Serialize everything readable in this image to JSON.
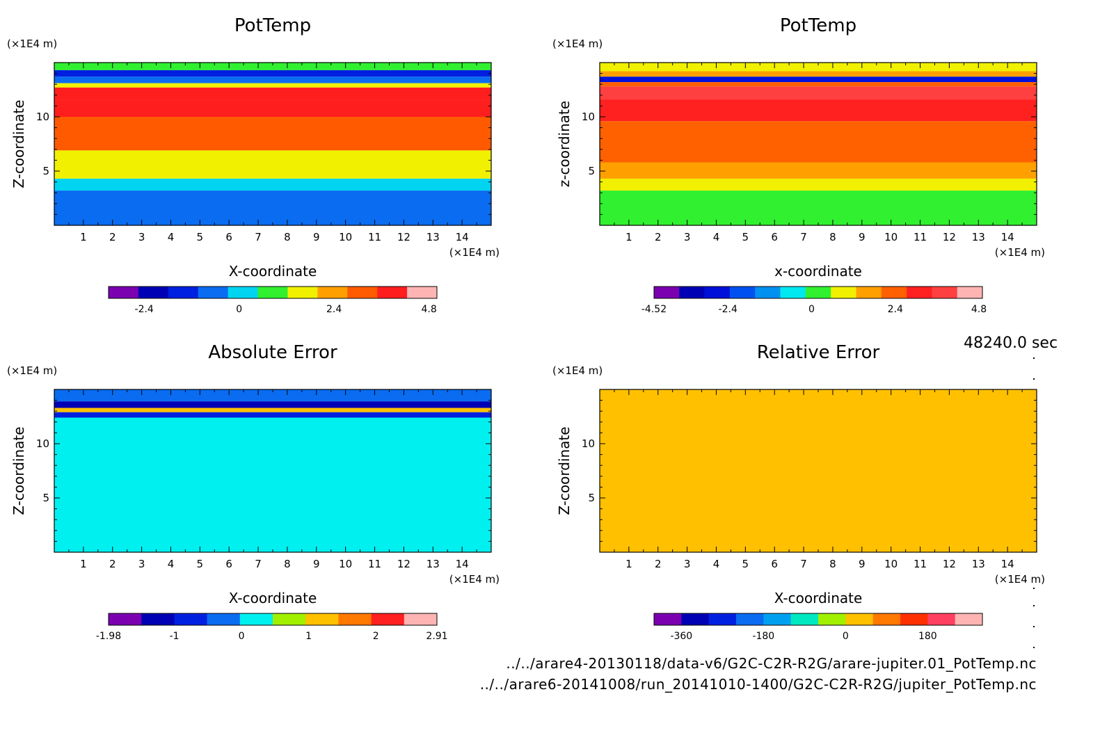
{
  "timestamp": "48240.0 sec",
  "files": [
    "../../arare4-20130118/data-v6/G2C-C2R-R2G/arare-jupiter.01_PotTemp.nc",
    "../../arare6-20141008/run_20141010-1400/G2C-C2R-R2G/jupiter_PotTemp.nc"
  ],
  "chart_data": [
    {
      "type": "heatmap",
      "title": "PotTemp",
      "xlabel": "X-coordinate",
      "ylabel": "Z-coordinate",
      "x_unit": "(×1E4 m)",
      "y_unit": "(×1E4 m)",
      "x_ticks": [
        "1",
        "2",
        "3",
        "4",
        "5",
        "6",
        "7",
        "8",
        "9",
        "10",
        "11",
        "12",
        "13",
        "14"
      ],
      "y_ticks": [
        "5",
        "10"
      ],
      "xlim": [
        0,
        15
      ],
      "ylim": [
        0,
        15
      ],
      "colorbar": {
        "colors": [
          "#7a00b0",
          "#0000b4",
          "#0020e0",
          "#0a6cf0",
          "#00d4f0",
          "#30f030",
          "#f0f000",
          "#ffa000",
          "#ff5a00",
          "#ff1e1e",
          "#ffb4b4"
        ],
        "tick_labels": [
          "-2.4",
          "0",
          "2.4",
          "4.8"
        ],
        "tick_values": [
          -2.4,
          0,
          2.4,
          4.8
        ],
        "range": [
          -3.3,
          5.0
        ]
      },
      "layers": [
        {
          "z_top": 15.0,
          "z_bottom": 14.3,
          "value": 0.6
        },
        {
          "z_top": 14.3,
          "z_bottom": 13.7,
          "value": -1.4
        },
        {
          "z_top": 13.7,
          "z_bottom": 13.1,
          "value": -0.6
        },
        {
          "z_top": 13.1,
          "z_bottom": 12.7,
          "value": 1.8
        },
        {
          "z_top": 12.7,
          "z_bottom": 11.6,
          "value": 4.2
        },
        {
          "z_top": 11.6,
          "z_bottom": 10.0,
          "value": 3.6
        },
        {
          "z_top": 10.0,
          "z_bottom": 6.9,
          "value": 2.8
        },
        {
          "z_top": 6.9,
          "z_bottom": 4.3,
          "value": 1.8
        },
        {
          "z_top": 4.3,
          "z_bottom": 3.2,
          "value": 0.4
        },
        {
          "z_top": 3.2,
          "z_bottom": 0.0,
          "value": -0.3
        }
      ]
    },
    {
      "type": "heatmap",
      "title": "PotTemp",
      "xlabel": "x-coordinate",
      "ylabel": "z-coordinate",
      "x_unit": "(×1E4 m)",
      "y_unit": "(×1E4 m)",
      "x_ticks": [
        "1",
        "2",
        "3",
        "4",
        "5",
        "6",
        "7",
        "8",
        "9",
        "10",
        "11",
        "12",
        "13",
        "14"
      ],
      "y_ticks": [
        "5",
        "10"
      ],
      "xlim": [
        0,
        15
      ],
      "ylim": [
        0,
        15
      ],
      "colorbar": {
        "colors": [
          "#7a00b0",
          "#0000b4",
          "#0010d8",
          "#0050f0",
          "#0090f0",
          "#00e8f0",
          "#30f030",
          "#f0f000",
          "#ffa000",
          "#ff6000",
          "#ff2020",
          "#ff4040",
          "#ffb4b4"
        ],
        "tick_labels": [
          "-4.52",
          "-2.4",
          "0",
          "2.4",
          "4.8"
        ],
        "tick_values": [
          -4.52,
          -2.4,
          0,
          2.4,
          4.8
        ],
        "range": [
          -4.52,
          4.9
        ]
      },
      "layers": [
        {
          "z_top": 15.0,
          "z_bottom": 14.2,
          "value": 0.8
        },
        {
          "z_top": 14.2,
          "z_bottom": 13.7,
          "value": 1.8
        },
        {
          "z_top": 13.7,
          "z_bottom": 13.2,
          "value": -2.6
        },
        {
          "z_top": 13.2,
          "z_bottom": 12.8,
          "value": 2.2
        },
        {
          "z_top": 12.8,
          "z_bottom": 11.6,
          "value": 4.0
        },
        {
          "z_top": 11.6,
          "z_bottom": 9.6,
          "value": 3.2
        },
        {
          "z_top": 9.6,
          "z_bottom": 5.8,
          "value": 2.6
        },
        {
          "z_top": 5.8,
          "z_bottom": 4.3,
          "value": 1.8
        },
        {
          "z_top": 4.3,
          "z_bottom": 3.2,
          "value": 0.8
        },
        {
          "z_top": 3.2,
          "z_bottom": 0.0,
          "value": 0.1
        }
      ]
    },
    {
      "type": "heatmap",
      "title": "Absolute Error",
      "xlabel": "X-coordinate",
      "ylabel": "Z-coordinate",
      "x_unit": "(×1E4 m)",
      "y_unit": "(×1E4 m)",
      "x_ticks": [
        "1",
        "2",
        "3",
        "4",
        "5",
        "6",
        "7",
        "8",
        "9",
        "10",
        "11",
        "12",
        "13",
        "14"
      ],
      "y_ticks": [
        "5",
        "10"
      ],
      "xlim": [
        0,
        15
      ],
      "ylim": [
        0,
        15
      ],
      "colorbar": {
        "colors": [
          "#7a00b0",
          "#0000b4",
          "#0020e0",
          "#0a6cf0",
          "#00f0f0",
          "#a0f000",
          "#ffc000",
          "#ff7800",
          "#ff2020",
          "#ffb4b4"
        ],
        "tick_labels": [
          "-1.98",
          "-1",
          "0",
          "1",
          "2",
          "2.91"
        ],
        "tick_values": [
          -1.98,
          -1,
          0,
          1,
          2,
          2.91
        ],
        "range": [
          -1.98,
          2.91
        ]
      },
      "layers": [
        {
          "z_top": 15.0,
          "z_bottom": 13.9,
          "value": -0.4
        },
        {
          "z_top": 13.9,
          "z_bottom": 13.3,
          "value": -1.2
        },
        {
          "z_top": 13.3,
          "z_bottom": 12.9,
          "value": 1.3
        },
        {
          "z_top": 12.9,
          "z_bottom": 12.4,
          "value": -0.8
        },
        {
          "z_top": 12.4,
          "z_bottom": 0.0,
          "value": 0.1
        }
      ]
    },
    {
      "type": "heatmap",
      "title": "Relative Error",
      "xlabel": "X-coordinate",
      "ylabel": "Z-coordinate",
      "x_unit": "(×1E4 m)",
      "y_unit": "(×1E4 m)",
      "x_ticks": [
        "1",
        "2",
        "3",
        "4",
        "5",
        "6",
        "7",
        "8",
        "9",
        "10",
        "11",
        "12",
        "13",
        "14"
      ],
      "y_ticks": [
        "5",
        "10"
      ],
      "xlim": [
        0,
        15
      ],
      "ylim": [
        0,
        15
      ],
      "colorbar": {
        "colors": [
          "#7a00b0",
          "#0000b4",
          "#0020e0",
          "#0a6cf0",
          "#00a0f0",
          "#00e8c0",
          "#a0f000",
          "#ffc000",
          "#ff7800",
          "#ff3000",
          "#ff4060",
          "#ffb4b4"
        ],
        "tick_labels": [
          "-360",
          "-180",
          "0",
          "180"
        ],
        "tick_values": [
          -360,
          -180,
          0,
          180
        ],
        "range": [
          -420,
          300
        ]
      },
      "layers": [
        {
          "z_top": 15.0,
          "z_bottom": 0.0,
          "value": 30
        }
      ]
    }
  ]
}
